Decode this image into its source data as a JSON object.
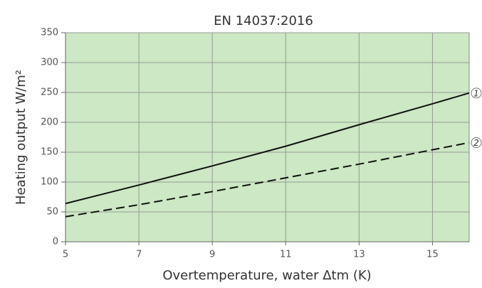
{
  "chart_data": {
    "type": "line",
    "title": "EN 14037:2016",
    "xlabel": "Overtemperature, water Δtm (K)",
    "ylabel": "Heating output W/m²",
    "x": [
      5,
      7,
      9,
      11,
      13,
      15,
      16
    ],
    "series": [
      {
        "name": "1",
        "color": "#111111",
        "dashed": false,
        "values": [
          64,
          95,
          127,
          160,
          196,
          231,
          249
        ]
      },
      {
        "name": "2",
        "color": "#111111",
        "dashed": true,
        "values": [
          42,
          62,
          84,
          107,
          130,
          154,
          166
        ]
      }
    ],
    "xlim": [
      5,
      16
    ],
    "xticks": [
      5,
      7,
      9,
      11,
      13,
      15
    ],
    "ylim": [
      0,
      350
    ],
    "yticks": [
      0,
      50,
      100,
      150,
      200,
      250,
      300,
      350
    ],
    "grid": true,
    "background": "#cce8c4"
  }
}
